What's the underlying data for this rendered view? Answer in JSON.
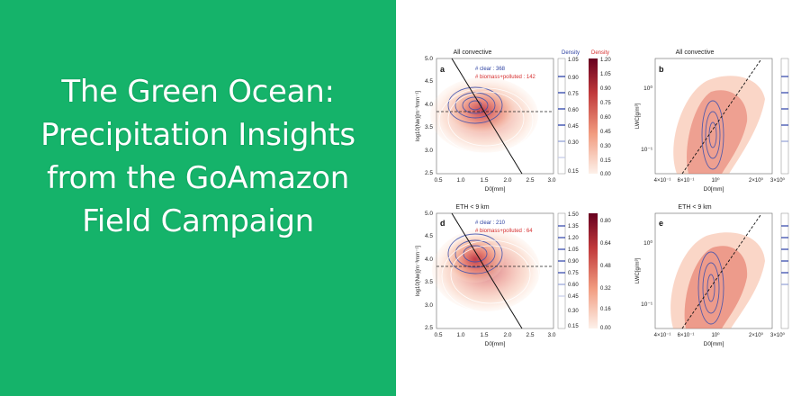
{
  "headline": {
    "lines": [
      "The Green Ocean:",
      "Precipitation Insights",
      "from the GoAmazon",
      "Field Campaign"
    ]
  },
  "colors": {
    "background_left": "#15b36a",
    "text": "#ffffff",
    "blue_series": "#2b3fa0",
    "red_series": "#d62f2f"
  },
  "figure": {
    "panels": [
      {
        "label": "a",
        "title": "All convective",
        "ylabel": "log10(Nw)[m⁻³mm⁻¹]",
        "xlabel": "D0[mm]",
        "xticks": [
          "0.5",
          "1.0",
          "1.5",
          "2.0",
          "2.5",
          "3.0"
        ],
        "yticks": [
          "5.0",
          "4.5",
          "4.0",
          "3.5",
          "3.0",
          "2.5"
        ],
        "legend_clear": "# clear : 368",
        "legend_polluted": "# biomass+polluted : 142"
      },
      {
        "label": "b",
        "title": "All convective",
        "ylabel": "LWC[g/m³]",
        "xlabel": "D0[mm]",
        "xticks": [
          "4×10⁻¹",
          "6×10⁻¹",
          "10⁰",
          "2×10⁰",
          "3×10⁰"
        ],
        "yticks": [
          "10⁰",
          "10⁻¹"
        ]
      },
      {
        "label": "d",
        "title": "ETH < 9 km",
        "ylabel": "log10(Nw)[m⁻³mm⁻¹]",
        "xlabel": "D0[mm]",
        "xticks": [
          "0.5",
          "1.0",
          "1.5",
          "2.0",
          "2.5",
          "3.0"
        ],
        "yticks": [
          "5.0",
          "4.5",
          "4.0",
          "3.5",
          "3.0",
          "2.5"
        ],
        "legend_clear": "# clear : 210",
        "legend_polluted": "# biomass+polluted : 64"
      },
      {
        "label": "e",
        "title": "ETH < 9 km",
        "ylabel": "LWC[g/m³]",
        "xlabel": "D0[mm]",
        "xticks": [
          "4×10⁻¹",
          "6×10⁻¹",
          "10⁰",
          "2×10⁰",
          "3×10⁰"
        ],
        "yticks": [
          "10⁰",
          "10⁻¹"
        ]
      }
    ],
    "colorbar_top": {
      "blue_title": "Density",
      "red_title": "Density",
      "blue_ticks": [
        "1.05",
        "0.90",
        "0.75",
        "0.60",
        "0.45",
        "0.30",
        "0.15"
      ],
      "red_ticks": [
        "1.20",
        "1.05",
        "0.90",
        "0.75",
        "0.60",
        "0.45",
        "0.30",
        "0.15",
        "0.00"
      ]
    },
    "colorbar_bottom": {
      "blue_ticks": [
        "1.50",
        "1.35",
        "1.20",
        "1.05",
        "0.90",
        "0.75",
        "0.60",
        "0.45",
        "0.30",
        "0.15"
      ],
      "red_ticks": [
        "0.80",
        "0.64",
        "0.48",
        "0.32",
        "0.16",
        "0.00"
      ]
    }
  }
}
